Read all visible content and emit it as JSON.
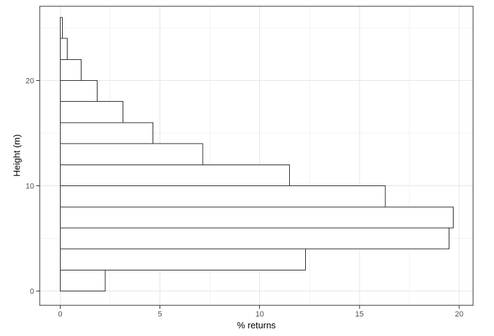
{
  "chart_data": {
    "type": "bar",
    "orientation": "horizontal",
    "title": "",
    "xlabel": "% returns",
    "ylabel": "Height (m)",
    "xlim": [
      -1.03,
      20.7
    ],
    "ylim": [
      -1.35,
      27.05
    ],
    "grid": "major+minor",
    "legend": "none",
    "x_ticks": [
      0,
      5,
      10,
      15,
      20
    ],
    "x_tick_labels": [
      "0",
      "5",
      "10",
      "15",
      "20"
    ],
    "x_minor_ticks": [
      2.5,
      7.5,
      12.5,
      17.5
    ],
    "y_ticks": [
      0,
      10,
      20
    ],
    "y_tick_labels": [
      "0",
      "10",
      "20"
    ],
    "y_minor_ticks": [
      5,
      15,
      25
    ],
    "bin_height_m": 2,
    "bars": [
      {
        "height_range": [
          0,
          2
        ],
        "value": 2.25
      },
      {
        "height_range": [
          2,
          4
        ],
        "value": 12.3
      },
      {
        "height_range": [
          4,
          6
        ],
        "value": 19.5
      },
      {
        "height_range": [
          6,
          8
        ],
        "value": 19.7
      },
      {
        "height_range": [
          8,
          10
        ],
        "value": 16.3
      },
      {
        "height_range": [
          10,
          12
        ],
        "value": 11.5
      },
      {
        "height_range": [
          12,
          14
        ],
        "value": 7.15
      },
      {
        "height_range": [
          14,
          16
        ],
        "value": 4.65
      },
      {
        "height_range": [
          16,
          18
        ],
        "value": 3.15
      },
      {
        "height_range": [
          18,
          20
        ],
        "value": 1.85
      },
      {
        "height_range": [
          20,
          22
        ],
        "value": 1.05
      },
      {
        "height_range": [
          22,
          24
        ],
        "value": 0.35
      },
      {
        "height_range": [
          24,
          26
        ],
        "value": 0.1
      }
    ],
    "colors": {
      "background": "#ffffff",
      "bar_fill": "#ffffff",
      "bar_stroke": "#2e2e2e",
      "panel_border": "#333333",
      "grid_major": "#e5e5e5",
      "grid_minor": "#f2f2f2",
      "tick_mark": "#333333",
      "tick_label": "#4d4d4d",
      "axis_title": "#000000"
    }
  }
}
